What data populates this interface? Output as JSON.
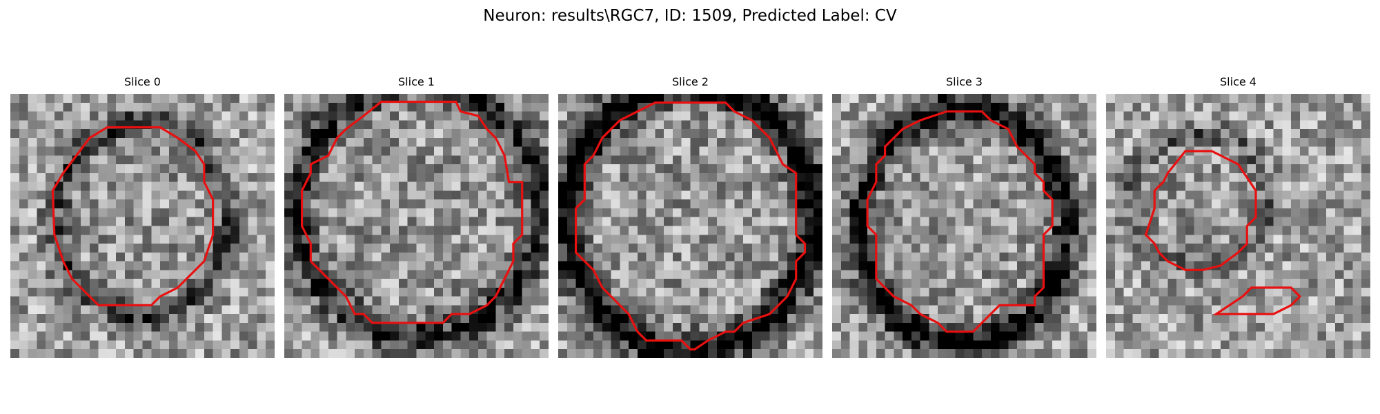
{
  "figure": {
    "title": "Neuron: results\\RGC7, ID: 1509, Predicted Label: CV",
    "overlay_color": "#e81010",
    "panels": [
      {
        "title": "Slice 0",
        "cx": 15.0,
        "cy": 14.2,
        "rx": 9.0,
        "ry": 10.2,
        "dark_ring": 0.35
      },
      {
        "title": "Slice 1",
        "cx": 15.2,
        "cy": 13.2,
        "rx": 12.8,
        "ry": 13.3,
        "dark_ring": 0.5
      },
      {
        "title": "Slice 2",
        "cx": 14.9,
        "cy": 14.0,
        "rx": 13.0,
        "ry": 14.0,
        "dark_ring": 0.75
      },
      {
        "title": "Slice 3",
        "cx": 14.9,
        "cy": 15.0,
        "rx": 10.8,
        "ry": 12.5,
        "dark_ring": 0.7
      },
      {
        "title": "Slice 4",
        "cx": 10.8,
        "cy": 12.0,
        "rx": 7.2,
        "ry": 6.8,
        "dark_ring": 0.2
      }
    ]
  }
}
